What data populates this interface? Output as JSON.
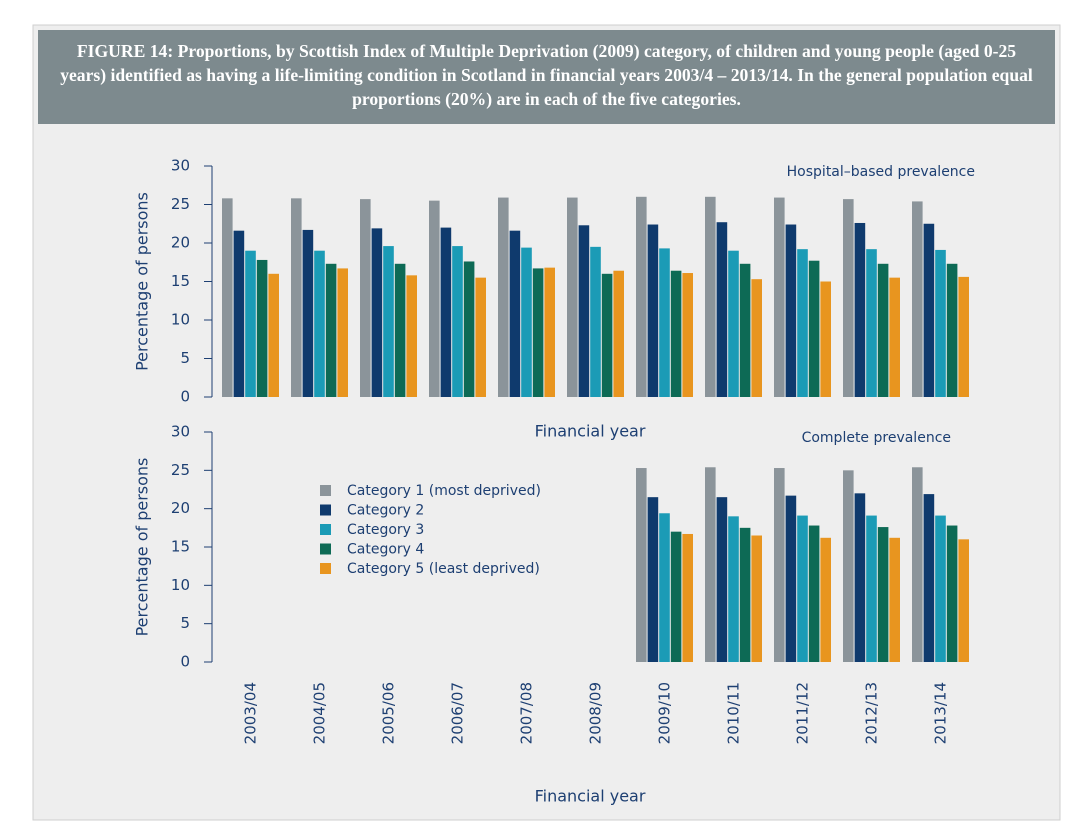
{
  "title": "FIGURE 14: Proportions, by Scottish Index of Multiple Deprivation (2009) category, of children and young people (aged 0-25 years) identified as having a life-limiting condition in Scotland in financial years 2003/4 – 2013/14. In the general population equal proportions (20%) are in each of the five categories.",
  "chart_data": [
    {
      "type": "bar",
      "annotation": "Hospital–based prevalence",
      "x_label": "Financial year",
      "y_label": "Percentage of persons",
      "ylim": [
        0,
        30
      ],
      "yticks": [
        0,
        5,
        10,
        15,
        20,
        25,
        30
      ],
      "series": [
        {
          "color": "#8b949a",
          "values": [
            25.8,
            25.8,
            25.7,
            25.5,
            25.9,
            25.9,
            26,
            26,
            25.9,
            25.7,
            25.4
          ]
        },
        {
          "color": "#0f3a6d",
          "values": [
            21.6,
            21.7,
            21.9,
            22,
            21.6,
            22.3,
            22.4,
            22.7,
            22.4,
            22.6,
            22.5
          ]
        },
        {
          "color": "#1b9bb6",
          "values": [
            19,
            19,
            19.6,
            19.6,
            19.4,
            19.5,
            19.3,
            19,
            19.2,
            19.2,
            19.1
          ]
        },
        {
          "color": "#0d6a55",
          "values": [
            17.8,
            17.3,
            17.3,
            17.6,
            16.7,
            16,
            16.4,
            17.3,
            17.7,
            17.3,
            17.3
          ]
        },
        {
          "color": "#e8951f",
          "values": [
            16,
            16.7,
            15.8,
            15.5,
            16.8,
            16.4,
            16.1,
            15.3,
            15,
            15.5,
            15.6
          ]
        }
      ]
    },
    {
      "type": "bar",
      "annotation": "Complete prevalence",
      "x_label": "Financial year",
      "y_label": "Percentage of persons",
      "ylim": [
        0,
        30
      ],
      "yticks": [
        0,
        5,
        10,
        15,
        20,
        25,
        30
      ],
      "categories": [
        "2003/04",
        "2004/05",
        "2005/06",
        "2006/07",
        "2007/08",
        "2008/09",
        "2009/10",
        "2010/11",
        "2011/12",
        "2012/13",
        "2013/14"
      ],
      "series": [
        {
          "name": "Category 1 (most deprived)",
          "color": "#8b949a",
          "values": [
            null,
            null,
            null,
            null,
            null,
            null,
            25.3,
            25.4,
            25.3,
            25,
            25.4
          ]
        },
        {
          "name": "Category 2",
          "color": "#0f3a6d",
          "values": [
            null,
            null,
            null,
            null,
            null,
            null,
            21.5,
            21.5,
            21.7,
            22,
            21.9
          ]
        },
        {
          "name": "Category 3",
          "color": "#1b9bb6",
          "values": [
            null,
            null,
            null,
            null,
            null,
            null,
            19.4,
            19,
            19.1,
            19.1,
            19.1
          ]
        },
        {
          "name": "Category 4",
          "color": "#0d6a55",
          "values": [
            null,
            null,
            null,
            null,
            null,
            null,
            17,
            17.5,
            17.8,
            17.6,
            17.8
          ]
        },
        {
          "name": "Category 5 (least deprived)",
          "color": "#e8951f",
          "values": [
            null,
            null,
            null,
            null,
            null,
            null,
            16.7,
            16.5,
            16.2,
            16.2,
            16
          ]
        }
      ]
    }
  ]
}
